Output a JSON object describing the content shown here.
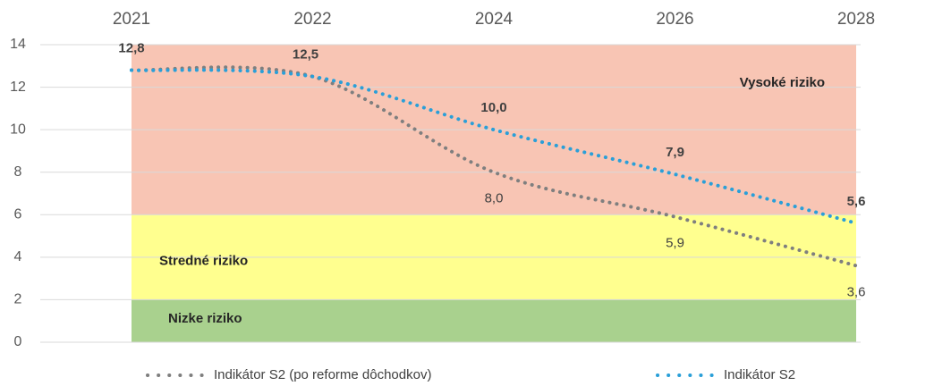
{
  "chart_data": {
    "type": "line",
    "categories": [
      "2021",
      "2022",
      "2024",
      "2026",
      "2028"
    ],
    "ylim": [
      0,
      14
    ],
    "yticks": [
      0,
      2,
      4,
      6,
      8,
      10,
      12,
      14
    ],
    "grid": true,
    "bands": [
      {
        "label": "Nizke riziko",
        "from": 0,
        "to": 2,
        "color": "#a9d18e"
      },
      {
        "label": "Stredné riziko",
        "from": 2,
        "to": 6,
        "color": "#ffff8f"
      },
      {
        "label": "Vysoké riziko",
        "from": 6,
        "to": 14,
        "color": "#f8c5b4"
      }
    ],
    "series": [
      {
        "name": "Indikátor S2 (po reforme dôchodkov)",
        "color": "#7f7f7f",
        "values": [
          12.8,
          12.5,
          8.0,
          5.9,
          3.6
        ],
        "value_labels": [
          null,
          null,
          "8,0",
          "5,9",
          "3,6"
        ]
      },
      {
        "name": "Indikátor S2",
        "color": "#2a9fd8",
        "values": [
          12.8,
          12.5,
          10.0,
          7.9,
          5.6
        ],
        "value_labels": [
          "12,8",
          "12,5",
          "10,0",
          "7,9",
          "5,6"
        ]
      }
    ]
  }
}
